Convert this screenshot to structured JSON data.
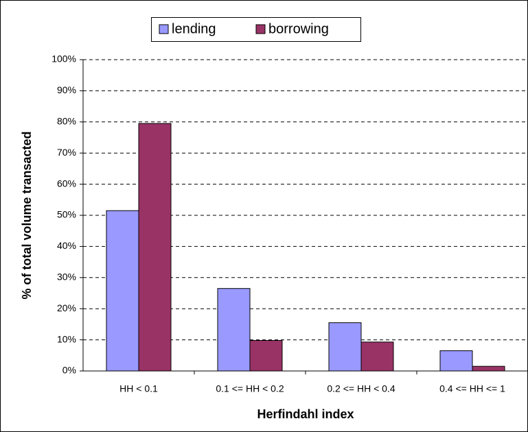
{
  "chart_data": {
    "type": "bar",
    "xlabel": "Herfindahl index",
    "ylabel": "% of total volume transacted",
    "categories": [
      "HH < 0.1",
      "0.1 <= HH < 0.2",
      "0.2 <= HH < 0.4",
      "0.4 <= HH <= 1"
    ],
    "series": [
      {
        "name": "lending",
        "color": "#9999ff",
        "values": [
          51.5,
          26.5,
          15.5,
          6.5
        ]
      },
      {
        "name": "borrowing",
        "color": "#993366",
        "values": [
          79.5,
          9.8,
          9.3,
          1.5
        ]
      }
    ],
    "ylim": [
      0,
      100
    ],
    "yticks": [
      {
        "value": 0,
        "label": "0%"
      },
      {
        "value": 10,
        "label": "10%"
      },
      {
        "value": 20,
        "label": "20%"
      },
      {
        "value": 30,
        "label": "30%"
      },
      {
        "value": 40,
        "label": "40%"
      },
      {
        "value": 50,
        "label": "50%"
      },
      {
        "value": 60,
        "label": "60%"
      },
      {
        "value": 70,
        "label": "70%"
      },
      {
        "value": 80,
        "label": "80%"
      },
      {
        "value": 90,
        "label": "90%"
      },
      {
        "value": 100,
        "label": "100%"
      }
    ],
    "grid": true,
    "legend": "top"
  }
}
